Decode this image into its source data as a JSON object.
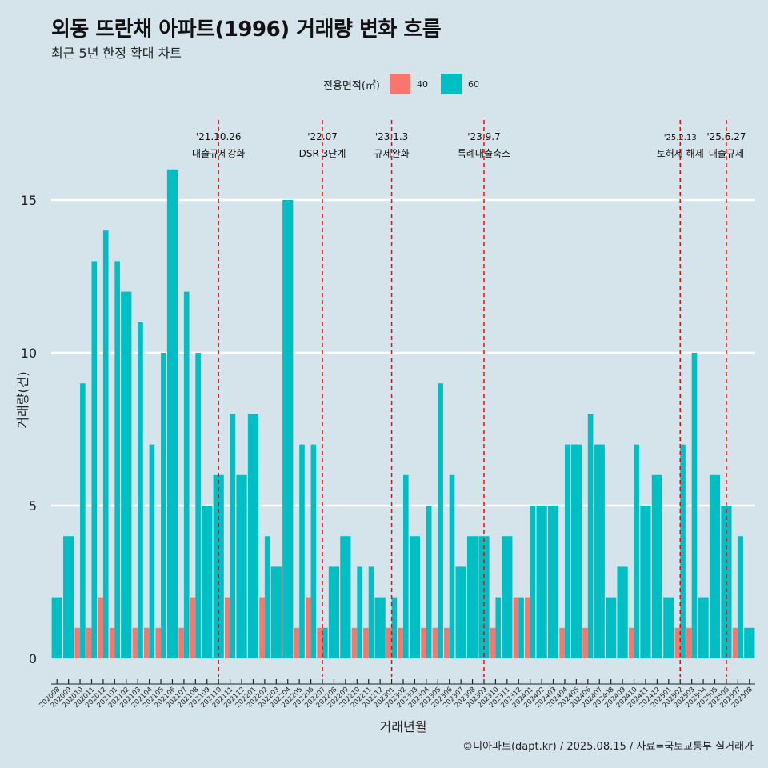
{
  "title": "외동 뜨란채 아파트(1996) 거래량 변화 흐름",
  "subtitle": "최근 5년 한정 확대 차트",
  "credit": "©디아파트(dapt.kr) / 2025.08.15 / 자료=국토교통부 실거래가",
  "colors": {
    "s40": "#f8766d",
    "s60": "#00bfc4",
    "event_line": "#ff0000"
  },
  "chart_data": {
    "type": "bar",
    "xlabel": "거래년월",
    "ylabel": "거래량(건)",
    "ylim": [
      0,
      17.5
    ],
    "y_ticks": [
      0,
      5,
      10,
      15
    ],
    "grid": true,
    "legend": {
      "title": "전용면적(㎡)",
      "placement": "top",
      "entries": [
        "40",
        "60"
      ]
    },
    "categories": [
      "202008",
      "202009",
      "202010",
      "202011",
      "202012",
      "202101",
      "202102",
      "202103",
      "202104",
      "202105",
      "202106",
      "202107",
      "202108",
      "202109",
      "202110",
      "202111",
      "202112",
      "202201",
      "202202",
      "202203",
      "202204",
      "202205",
      "202206",
      "202207",
      "202208",
      "202209",
      "202210",
      "202211",
      "202212",
      "202301",
      "202302",
      "202303",
      "202304",
      "202305",
      "202306",
      "202307",
      "202308",
      "202309",
      "202310",
      "202311",
      "202312",
      "202401",
      "202402",
      "202403",
      "202404",
      "202405",
      "202406",
      "202407",
      "202408",
      "202409",
      "202410",
      "202411",
      "202412",
      "202501",
      "202502",
      "202503",
      "202504",
      "202505",
      "202506",
      "202507",
      "202508"
    ],
    "series": [
      {
        "name": "40",
        "values": [
          0,
          0,
          1,
          1,
          2,
          1,
          0,
          1,
          1,
          1,
          0,
          1,
          2,
          0,
          0,
          2,
          0,
          0,
          2,
          0,
          0,
          1,
          2,
          1,
          0,
          0,
          1,
          1,
          0,
          1,
          1,
          0,
          1,
          1,
          1,
          0,
          0,
          0,
          1,
          0,
          2,
          2,
          0,
          0,
          1,
          0,
          1,
          0,
          0,
          0,
          1,
          0,
          0,
          0,
          1,
          1,
          0,
          0,
          0,
          1,
          0
        ]
      },
      {
        "name": "60",
        "values": [
          2,
          4,
          9,
          13,
          14,
          13,
          12,
          11,
          7,
          10,
          16,
          12,
          10,
          5,
          6,
          8,
          6,
          8,
          4,
          3,
          15,
          7,
          7,
          1,
          3,
          4,
          3,
          3,
          2,
          2,
          6,
          4,
          5,
          9,
          6,
          3,
          4,
          4,
          2,
          4,
          2,
          5,
          5,
          5,
          7,
          7,
          8,
          7,
          2,
          3,
          7,
          5,
          6,
          2,
          7,
          10,
          2,
          6,
          5,
          4,
          1
        ]
      }
    ],
    "annotations": [
      {
        "x": "202110",
        "date": "'21.10.26",
        "label": "대출규제강화"
      },
      {
        "x": "202207",
        "date": "'22.07",
        "label": "DSR 3단계"
      },
      {
        "x": "202301",
        "date": "'23.1.3",
        "label": "규제완화"
      },
      {
        "x": "202309",
        "date": "'23.9.7",
        "label": "특례대출축소"
      },
      {
        "x": "202502",
        "date": "'25.2.13",
        "label": "토허제 해제"
      },
      {
        "x": "202506",
        "date": "'25.6.27",
        "label": "대출규제"
      }
    ]
  }
}
